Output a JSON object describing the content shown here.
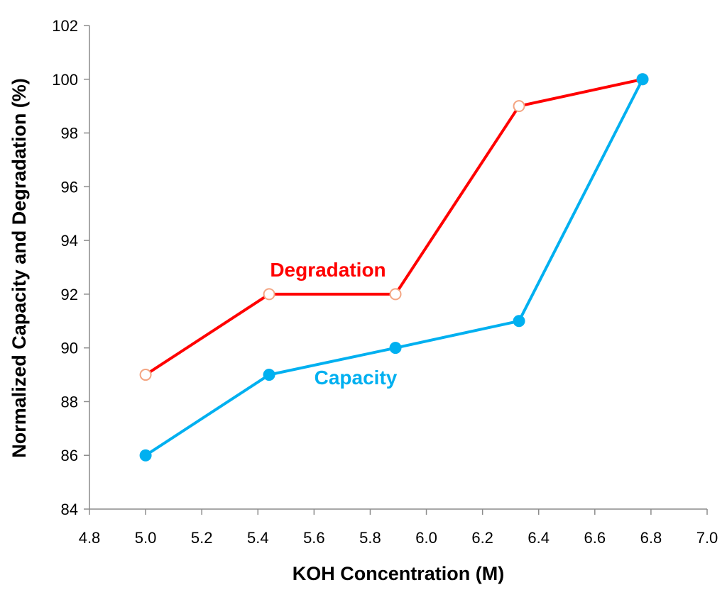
{
  "chart_data": {
    "type": "line",
    "title": "",
    "xlabel": "KOH Concentration (M)",
    "ylabel": "Normalized Capacity and Degradation (%)",
    "xlim": [
      4.8,
      7.0
    ],
    "ylim": [
      84,
      102
    ],
    "x_ticks": [
      "4.8",
      "5.0",
      "5.2",
      "5.4",
      "5.6",
      "5.8",
      "6.0",
      "6.2",
      "6.4",
      "6.6",
      "6.8",
      "7.0"
    ],
    "y_ticks": [
      "84",
      "86",
      "88",
      "90",
      "92",
      "94",
      "96",
      "98",
      "100",
      "102"
    ],
    "grid": false,
    "legend": "none",
    "series": [
      {
        "name": "Degradation",
        "label_text": "Degradation",
        "color": "#ff0000",
        "marker": "open-circle",
        "x": [
          5.0,
          5.44,
          5.89,
          6.33,
          6.77
        ],
        "y": [
          89,
          92,
          92,
          99,
          100
        ]
      },
      {
        "name": "Capacity",
        "label_text": "Capacity",
        "color": "#00b0f0",
        "marker": "filled-circle",
        "x": [
          5.0,
          5.44,
          5.89,
          6.33,
          6.77
        ],
        "y": [
          86,
          89,
          90,
          91,
          100
        ]
      }
    ]
  }
}
